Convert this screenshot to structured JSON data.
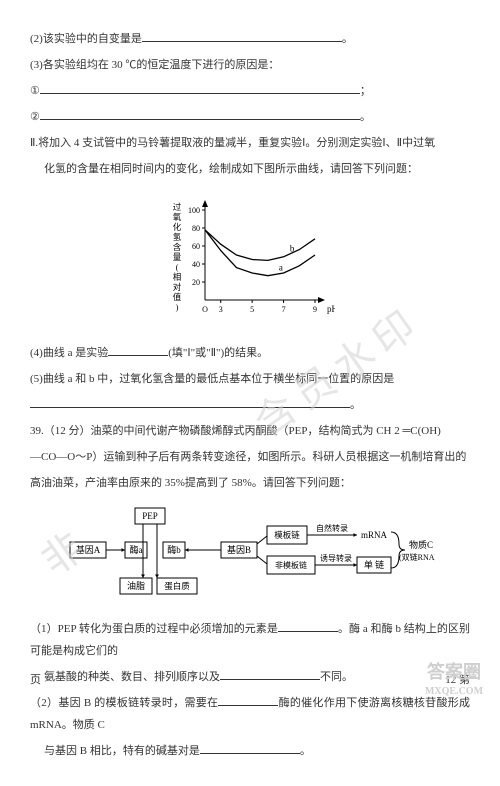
{
  "watermark": "含员水印",
  "watermark2": "非",
  "lines": {
    "q2": "(2)该实验中的自变量是",
    "q3": "(3)各实验组均在 30 ℃的恒定温度下进行的原因是：",
    "circ1": "①",
    "circ2": "②",
    "semi": "；",
    "period": "。",
    "q2part2": "Ⅱ.将加入 4 支试管中的马铃薯提取液的量减半，重复实验Ⅰ。分别测定实验Ⅰ、Ⅱ中过氧",
    "q2part2b": "化氢的含量在相同时间内的变化，绘制成如下图所示曲线，请回答下列问题：",
    "q4a": "(4)曲线 a 是实验",
    "q4b": "(填\"Ⅰ\"或\"Ⅱ\")的结果。",
    "q5a": "(5)曲线 a 和 b 中，过氧化氢含量的最低点基本位于横坐标同一位置的原因是",
    "q39": "39.（12 分）油菜的中间代谢产物磷酸烯醇式丙酮酸（PEP，结构简式为 CH 2 ═C(OH)",
    "q39b": "—CO—O～P）运输到种子后有两条转变途径，如图所示。科研人员根据这一机制培育出的",
    "q39c": "高油油菜，产油率由原来的 35%提高到了 58%。请回答下列问题：",
    "q39_1a": "（1）PEP 转化为蛋白质的过程中必须增加的元素是",
    "q39_1b": "。酶 a 和酶 b 结构上的区别可能是构成它们的",
    "q39_1c": "氨基酸的种类、数目、排列顺序以及",
    "q39_1d": "不同。",
    "q39_2a": "（2）基因 B 的模板链转录时，需要在",
    "q39_2b": "酶的催化作用下使游离核糖核苷酸形成 mRNA。物质 C",
    "q39_2c": "与基因 B 相比，特有的碱基对是"
  },
  "chart": {
    "ylabel": "过氧化氢含量(相对值)",
    "xlabel": "pH",
    "yticks": [
      "20",
      "40",
      "60",
      "80",
      "100"
    ],
    "xticks": [
      "O",
      "3",
      "5",
      "7",
      "9"
    ],
    "curve_a_label": "a",
    "curve_b_label": "b",
    "axis_color": "#000000",
    "curve_color": "#000000",
    "curve_a": [
      [
        0,
        78
      ],
      [
        1,
        55
      ],
      [
        2,
        36
      ],
      [
        3,
        30
      ],
      [
        4,
        27
      ],
      [
        5,
        30
      ],
      [
        6,
        38
      ],
      [
        7,
        50
      ]
    ],
    "curve_b": [
      [
        0,
        78
      ],
      [
        1,
        62
      ],
      [
        2,
        50
      ],
      [
        3,
        45
      ],
      [
        4,
        44
      ],
      [
        5,
        48
      ],
      [
        6,
        56
      ],
      [
        7,
        68
      ]
    ]
  },
  "flow": {
    "pep": "PEP",
    "geneA": "基因A",
    "enzA": "酶a",
    "enzB": "酶b",
    "geneB": "基因B",
    "oil": "油脂",
    "protein": "蛋白质",
    "template": "模板链",
    "nontemplate": "非模板链",
    "nat_trans": "自然转录",
    "ind_trans": "诱导转录",
    "mrna": "mRNA",
    "single": "单 链",
    "substC": "物质C",
    "dsRNA": "(双链RNA)"
  },
  "footer": {
    "left": "页",
    "right": "12 第"
  },
  "logo": {
    "top": "答案圈",
    "bottom": "MXQE.COM",
    "fill": "#cfcfcf"
  }
}
